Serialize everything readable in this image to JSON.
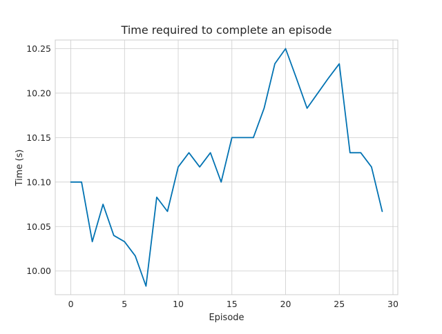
{
  "chart_data": {
    "type": "line",
    "title": "Time required to complete an episode",
    "xlabel": "Episode",
    "ylabel": "Time (s)",
    "xlim": [
      -1.45,
      30.45
    ],
    "ylim": [
      9.9734,
      10.2597
    ],
    "grid": true,
    "x_ticks": [
      0,
      5,
      10,
      15,
      20,
      25,
      30
    ],
    "x_tick_labels": [
      "0",
      "5",
      "10",
      "15",
      "20",
      "25",
      "30"
    ],
    "y_ticks": [
      10.0,
      10.05,
      10.1,
      10.15,
      10.2,
      10.25
    ],
    "y_tick_labels": [
      "10.00",
      "10.05",
      "10.10",
      "10.15",
      "10.20",
      "10.25"
    ],
    "line_color": "#0072b2",
    "series": [
      {
        "x": [
          0,
          1,
          2,
          3,
          4,
          5,
          6,
          7,
          8,
          9,
          10,
          11,
          12,
          13,
          14,
          15,
          16,
          17,
          18,
          19,
          20,
          21,
          22,
          23,
          24,
          25,
          26,
          27,
          28,
          29
        ],
        "values": [
          10.1,
          10.1,
          10.033,
          10.075,
          10.04,
          10.033,
          10.017,
          9.983,
          10.083,
          10.067,
          10.117,
          10.133,
          10.117,
          10.133,
          10.1,
          10.15,
          10.15,
          10.15,
          10.183,
          10.233,
          10.25,
          10.217,
          10.183,
          10.2,
          10.217,
          10.233,
          10.133,
          10.133,
          10.117,
          10.067
        ]
      }
    ]
  }
}
